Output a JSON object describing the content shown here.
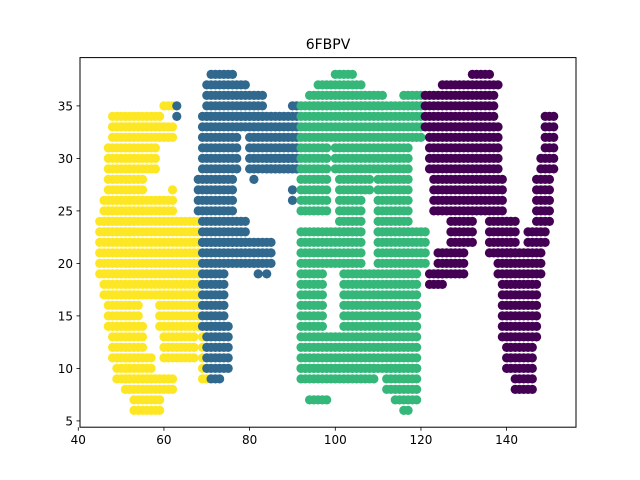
{
  "chart_data": {
    "type": "scatter",
    "title": "6FBPV",
    "xlabel": "",
    "ylabel": "",
    "xlim": [
      40.4,
      156.2
    ],
    "ylim": [
      4.4,
      39.6
    ],
    "xticks": [
      40,
      60,
      80,
      100,
      120,
      140
    ],
    "yticks": [
      5,
      10,
      15,
      20,
      25,
      30,
      35
    ],
    "grid": false,
    "legend": false,
    "colormap": [
      "#fde725",
      "#31688e",
      "#35b779",
      "#440154"
    ],
    "series": [
      {
        "color": "#fde725",
        "rects": [
          {
            "x0": 48,
            "x1": 59,
            "y0": 33,
            "y1": 34
          },
          {
            "x0": 60,
            "x1": 62,
            "y0": 35,
            "y1": 35
          },
          {
            "x0": 48,
            "x1": 62,
            "y0": 32,
            "y1": 33
          },
          {
            "x0": 47,
            "x1": 58,
            "y0": 29,
            "y1": 31
          },
          {
            "x0": 47,
            "x1": 55,
            "y0": 25,
            "y1": 28
          },
          {
            "x0": 46,
            "x1": 53,
            "y0": 23,
            "y1": 26
          },
          {
            "x0": 45,
            "x1": 68,
            "y0": 19,
            "y1": 24
          },
          {
            "x0": 54,
            "x1": 62,
            "y0": 25,
            "y1": 26
          },
          {
            "x0": 46,
            "x1": 68,
            "y0": 17,
            "y1": 19
          },
          {
            "x0": 47,
            "x1": 54,
            "y0": 14,
            "y1": 17
          },
          {
            "x0": 48,
            "x1": 55,
            "y0": 11,
            "y1": 14
          },
          {
            "x0": 49,
            "x1": 57,
            "y0": 9,
            "y1": 11
          },
          {
            "x0": 59,
            "x1": 68,
            "y0": 14,
            "y1": 17
          },
          {
            "x0": 60,
            "x1": 67,
            "y0": 11,
            "y1": 13
          },
          {
            "x0": 51,
            "x1": 62,
            "y0": 8,
            "y1": 9
          },
          {
            "x0": 53,
            "x1": 59,
            "y0": 6,
            "y1": 7
          },
          {
            "x0": 69,
            "x1": 70,
            "y0": 9,
            "y1": 13
          }
        ],
        "points": [
          [
            62,
            27
          ]
        ]
      },
      {
        "color": "#31688e",
        "rects": [
          {
            "x0": 71,
            "x1": 76,
            "y0": 38,
            "y1": 38
          },
          {
            "x0": 70,
            "x1": 79,
            "y0": 37,
            "y1": 37
          },
          {
            "x0": 70,
            "x1": 83,
            "y0": 34,
            "y1": 36
          },
          {
            "x0": 69,
            "x1": 91,
            "y0": 33,
            "y1": 34
          },
          {
            "x0": 69,
            "x1": 77,
            "y0": 29,
            "y1": 32
          },
          {
            "x0": 80,
            "x1": 91,
            "y0": 29,
            "y1": 32
          },
          {
            "x0": 68,
            "x1": 76,
            "y0": 25,
            "y1": 28
          },
          {
            "x0": 69,
            "x1": 79,
            "y0": 22,
            "y1": 24
          },
          {
            "x0": 69,
            "x1": 85,
            "y0": 20,
            "y1": 22
          },
          {
            "x0": 69,
            "x1": 74,
            "y0": 14,
            "y1": 19
          },
          {
            "x0": 70,
            "x1": 75,
            "y0": 10,
            "y1": 14
          },
          {
            "x0": 84,
            "x1": 91,
            "y0": 29,
            "y1": 30
          }
        ],
        "points": [
          [
            63,
            35
          ],
          [
            63,
            34
          ],
          [
            90,
            35
          ],
          [
            91,
            35
          ],
          [
            81,
            28
          ],
          [
            82,
            19
          ],
          [
            84,
            19
          ],
          [
            90,
            27
          ],
          [
            90,
            26
          ],
          [
            71,
            9
          ],
          [
            72,
            9
          ],
          [
            73,
            9
          ]
        ]
      },
      {
        "color": "#35b779",
        "rects": [
          {
            "x0": 100,
            "x1": 104,
            "y0": 38,
            "y1": 38
          },
          {
            "x0": 96,
            "x1": 106,
            "y0": 37,
            "y1": 37
          },
          {
            "x0": 94,
            "x1": 111,
            "y0": 35,
            "y1": 36
          },
          {
            "x0": 116,
            "x1": 120,
            "y0": 35,
            "y1": 36
          },
          {
            "x0": 92,
            "x1": 120,
            "y0": 32,
            "y1": 35
          },
          {
            "x0": 92,
            "x1": 98,
            "y0": 29,
            "y1": 31
          },
          {
            "x0": 100,
            "x1": 117,
            "y0": 29,
            "y1": 31
          },
          {
            "x0": 92,
            "x1": 98,
            "y0": 25,
            "y1": 28
          },
          {
            "x0": 101,
            "x1": 108,
            "y0": 27,
            "y1": 28
          },
          {
            "x0": 101,
            "x1": 106,
            "y0": 23,
            "y1": 26
          },
          {
            "x0": 110,
            "x1": 117,
            "y0": 23,
            "y1": 28
          },
          {
            "x0": 92,
            "x1": 106,
            "y0": 20,
            "y1": 23
          },
          {
            "x0": 110,
            "x1": 121,
            "y0": 20,
            "y1": 23
          },
          {
            "x0": 92,
            "x1": 97,
            "y0": 14,
            "y1": 19
          },
          {
            "x0": 102,
            "x1": 119,
            "y0": 14,
            "y1": 19
          },
          {
            "x0": 92,
            "x1": 119,
            "y0": 10,
            "y1": 13
          },
          {
            "x0": 92,
            "x1": 109,
            "y0": 9,
            "y1": 10
          },
          {
            "x0": 112,
            "x1": 119,
            "y0": 8,
            "y1": 10
          },
          {
            "x0": 94,
            "x1": 98,
            "y0": 7,
            "y1": 7
          },
          {
            "x0": 114,
            "x1": 119,
            "y0": 7,
            "y1": 7
          }
        ],
        "points": [
          [
            116,
            6
          ],
          [
            117,
            6
          ]
        ]
      },
      {
        "color": "#440154",
        "rects": [
          {
            "x0": 132,
            "x1": 136,
            "y0": 38,
            "y1": 38
          },
          {
            "x0": 125,
            "x1": 138,
            "y0": 37,
            "y1": 37
          },
          {
            "x0": 121,
            "x1": 137,
            "y0": 33,
            "y1": 36
          },
          {
            "x0": 122,
            "x1": 138,
            "y0": 29,
            "y1": 33
          },
          {
            "x0": 123,
            "x1": 139,
            "y0": 25,
            "y1": 28
          },
          {
            "x0": 127,
            "x1": 132,
            "y0": 22,
            "y1": 24
          },
          {
            "x0": 136,
            "x1": 142,
            "y0": 21,
            "y1": 24
          },
          {
            "x0": 124,
            "x1": 130,
            "y0": 19,
            "y1": 21
          },
          {
            "x0": 138,
            "x1": 148,
            "y0": 19,
            "y1": 21
          },
          {
            "x0": 139,
            "x1": 147,
            "y0": 13,
            "y1": 18
          },
          {
            "x0": 140,
            "x1": 146,
            "y0": 10,
            "y1": 12
          },
          {
            "x0": 142,
            "x1": 146,
            "y0": 8,
            "y1": 9
          },
          {
            "x0": 149,
            "x1": 151,
            "y0": 31,
            "y1": 34
          },
          {
            "x0": 148,
            "x1": 151,
            "y0": 29,
            "y1": 30
          },
          {
            "x0": 147,
            "x1": 150,
            "y0": 24,
            "y1": 28
          },
          {
            "x0": 145,
            "x1": 149,
            "y0": 22,
            "y1": 23
          },
          {
            "x0": 122,
            "x1": 125,
            "y0": 18,
            "y1": 19
          }
        ],
        "points": []
      }
    ]
  }
}
